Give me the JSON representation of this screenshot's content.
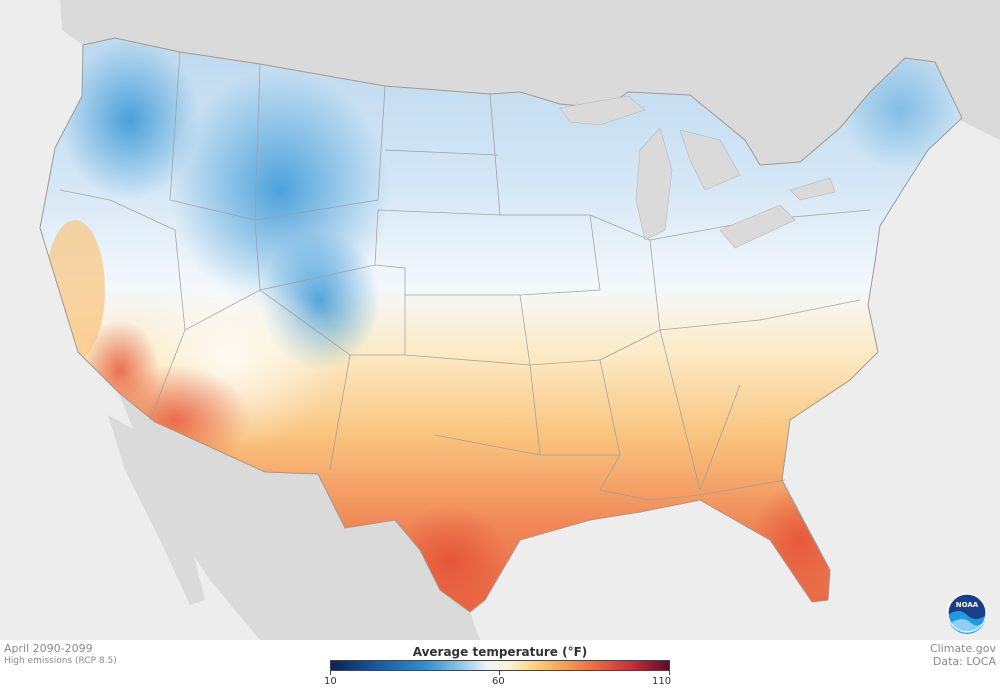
{
  "caption": {
    "period": "April 2090-2099",
    "scenario": "High emissions (RCP 8.5)"
  },
  "legend": {
    "title": "Average temperature (°F)",
    "tick_min": "10",
    "tick_mid": "60",
    "tick_max": "110",
    "colors": [
      "#0b2257",
      "#1b5aa0",
      "#2f8fcf",
      "#8cc4e6",
      "#eaf3fa",
      "#fbf3dc",
      "#fbd383",
      "#f6a55b",
      "#ec6b43",
      "#c72e3c",
      "#5e0a2a"
    ]
  },
  "credits": {
    "source": "Climate.gov",
    "data": "Data: LOCA"
  },
  "logo": {
    "text": "NOAA",
    "icon": "noaa-logo-icon"
  }
}
